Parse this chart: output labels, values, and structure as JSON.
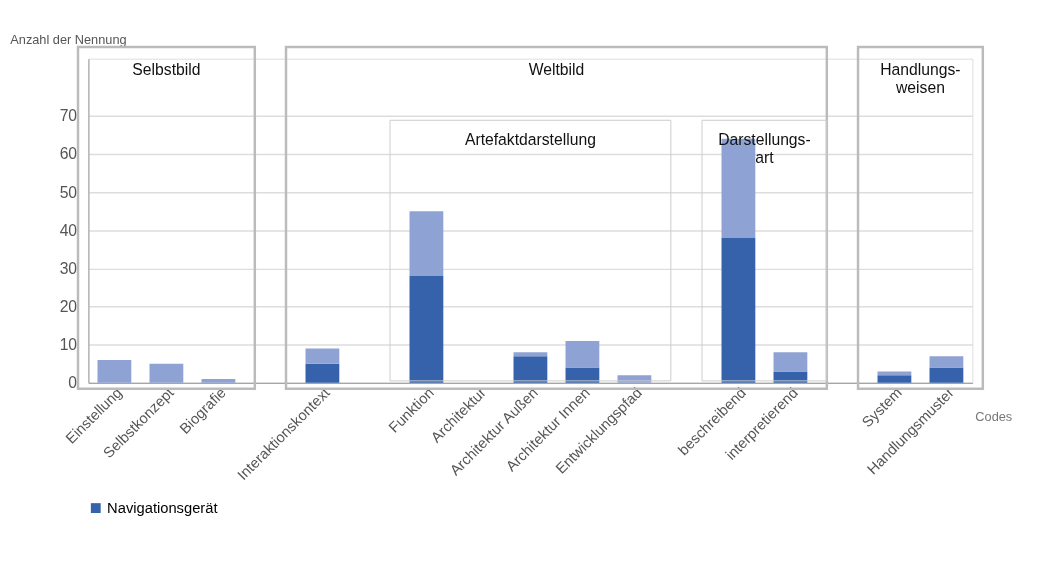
{
  "chart_data": {
    "type": "bar",
    "stacked": true,
    "ylabel": "Anzahl der Nennung",
    "xlabel": "Codes",
    "categories": [
      "Einstellung",
      "Selbstkonzept",
      "Biografie",
      null,
      "Interaktionskontext",
      null,
      "Funktion",
      "Architektur",
      "Architektur Außen",
      "Architektur Innen",
      "Entwicklungspfad",
      null,
      "beschreibend",
      "interpretierend",
      null,
      "System",
      "Handlungsmuster"
    ],
    "series": [
      {
        "name": "Navigationsgerät",
        "color": "#3562ab",
        "values": [
          0,
          0,
          0,
          null,
          5,
          null,
          28,
          0,
          7,
          4,
          0,
          null,
          38,
          3,
          null,
          2,
          4
        ]
      },
      {
        "color": "#8fa2d4",
        "values": [
          6,
          5,
          1,
          null,
          4,
          null,
          17,
          0,
          1,
          7,
          2,
          null,
          26,
          5,
          null,
          1,
          3
        ]
      }
    ],
    "ylim": [
      0,
      85
    ],
    "yticks": [
      0,
      10,
      20,
      30,
      40,
      50,
      60,
      70
    ],
    "grid": "y",
    "legend": "bottom",
    "annotations": [
      "Selbstbild",
      "Weltbild",
      "Handlungs-\nweisen",
      "Artefaktdarstellung",
      "Darstellungs-\nart"
    ]
  }
}
